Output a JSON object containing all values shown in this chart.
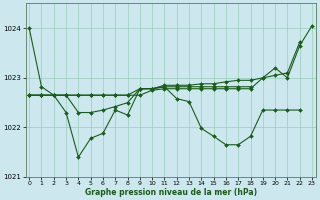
{
  "background_color": "#cce8ee",
  "grid_color": "#99ccbb",
  "line_color": "#1a5c1a",
  "xlabel": "Graphe pression niveau de la mer (hPa)",
  "ylim": [
    1021,
    1024.5
  ],
  "xlim": [
    -0.5,
    23
  ],
  "yticks": [
    1021,
    1022,
    1023,
    1024
  ],
  "line1": {
    "x": [
      0,
      1,
      2,
      3,
      4,
      5,
      6,
      7,
      8,
      9,
      10,
      11,
      12,
      13,
      14,
      15,
      16,
      17,
      18,
      19,
      20,
      21,
      22,
      23
    ],
    "y": [
      1024.0,
      1022.82,
      1022.65,
      1022.65,
      1022.65,
      1022.65,
      1022.65,
      1022.65,
      1022.65,
      1022.65,
      1022.75,
      1022.78,
      1022.78,
      1022.78,
      1022.78,
      1022.78,
      1022.78,
      1022.78,
      1022.78,
      1023.0,
      1023.2,
      1023.0,
      1023.65,
      1024.05
    ]
  },
  "line2": {
    "x": [
      0,
      1,
      2,
      3,
      4,
      5,
      6,
      7,
      8,
      9,
      10,
      11,
      12,
      13,
      14,
      15,
      16,
      17,
      18,
      19,
      20,
      21,
      22
    ],
    "y": [
      1022.65,
      1022.65,
      1022.65,
      1022.3,
      1021.4,
      1021.78,
      1021.88,
      1022.35,
      1022.25,
      1022.78,
      1022.78,
      1022.82,
      1022.58,
      1022.52,
      1021.98,
      1021.82,
      1021.65,
      1021.65,
      1021.82,
      1022.35,
      1022.35,
      1022.35,
      1022.35
    ]
  },
  "line3": {
    "x": [
      0,
      1,
      2,
      3,
      4,
      5,
      6,
      7,
      8,
      9,
      10,
      11,
      12,
      13,
      14,
      15,
      16,
      17,
      18,
      19,
      20,
      21,
      22
    ],
    "y": [
      1022.65,
      1022.65,
      1022.65,
      1022.65,
      1022.65,
      1022.65,
      1022.65,
      1022.65,
      1022.65,
      1022.78,
      1022.78,
      1022.85,
      1022.85,
      1022.85,
      1022.88,
      1022.88,
      1022.92,
      1022.95,
      1022.95,
      1023.0,
      1023.05,
      1023.1,
      1023.72
    ]
  },
  "line4": {
    "x": [
      0,
      1,
      2,
      3,
      4,
      5,
      6,
      7,
      8,
      9,
      10,
      11,
      12,
      13,
      14,
      15,
      16,
      17,
      18
    ],
    "y": [
      1022.65,
      1022.65,
      1022.65,
      1022.65,
      1022.3,
      1022.3,
      1022.35,
      1022.42,
      1022.5,
      1022.78,
      1022.78,
      1022.82,
      1022.82,
      1022.82,
      1022.82,
      1022.82,
      1022.82,
      1022.82,
      1022.82
    ]
  }
}
